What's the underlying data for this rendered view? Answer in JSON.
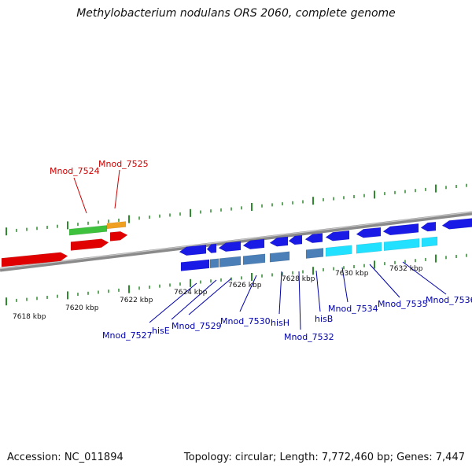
{
  "header": {
    "title": "Methylobacterium nodulans ORS 2060, complete genome"
  },
  "footer": {
    "accession": "Accession: NC_011894",
    "stats": "Topology: circular; Length: 7,772,460 bp; Genes: 7,447"
  },
  "scale": {
    "ticks": [
      "7618 kbp",
      "7620 kbp",
      "7622 kbp",
      "7624 kbp",
      "7626 kbp",
      "7628 kbp",
      "7630 kbp",
      "7632 kbp"
    ]
  },
  "labels": {
    "forward": [
      "Mnod_7524",
      "Mnod_7525"
    ],
    "reverse": [
      "Mnod_7527",
      "hisE",
      "Mnod_7529",
      "Mnod_7530",
      "hisH",
      "Mnod_7532",
      "hisB",
      "Mnod_7534",
      "Mnod_7535",
      "Mnod_7536"
    ]
  },
  "colors": {
    "forward_label": "#cc0000",
    "reverse_label": "#0000aa",
    "backbone": "#8a8a8a",
    "tick": "#2e8b2e",
    "forward_gene": "#e00000",
    "forward_rna": "#3ec23e",
    "forward_other": "#f0a020",
    "reverse_gene": "#1a1ae6",
    "reverse_steel": "#4a7fb8",
    "reverse_cyan": "#22e0ff"
  }
}
